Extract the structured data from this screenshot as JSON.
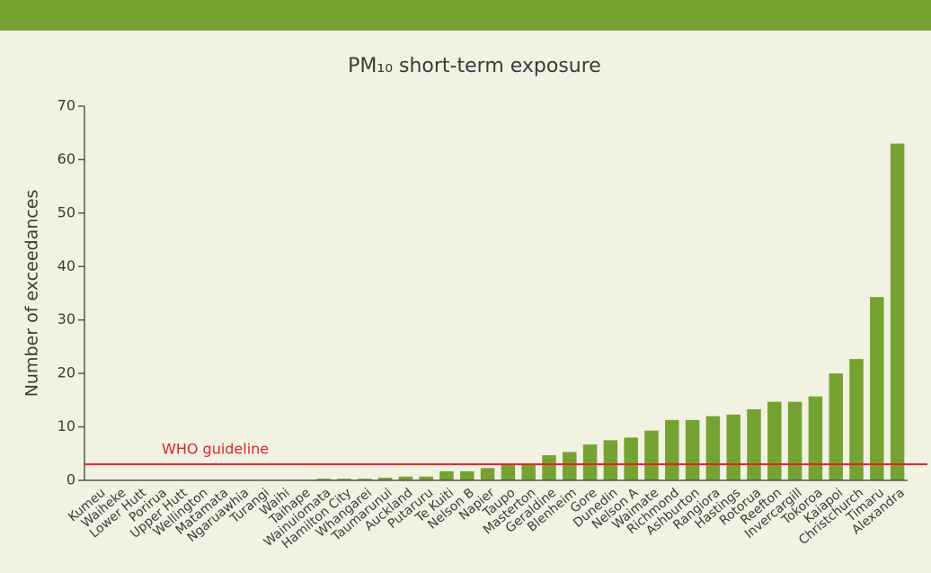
{
  "chart_data": {
    "type": "bar",
    "title": "PM₁₀ short-term exposure",
    "ylabel": "Number of exceedances",
    "categories": [
      "Kumeu",
      "Waiheke",
      "Lower Hutt",
      "Porirua",
      "Upper Hutt",
      "Wellington",
      "Matamata",
      "Ngaruawhia",
      "Turangi",
      "Waihi",
      "Taihape",
      "Wainuiomata",
      "Hamilton City",
      "Whangarei",
      "Taumarunui",
      "Auckland",
      "Putaruru",
      "Te Kuiti",
      "Nelson B",
      "Napier",
      "Taupo",
      "Masterton",
      "Geraldine",
      "Blenheim",
      "Gore",
      "Dunedin",
      "Nelson A",
      "Waimate",
      "Richmond",
      "Ashburton",
      "Rangiora",
      "Hastings",
      "Rotorua",
      "Reefton",
      "Invercargill",
      "Tokoroa",
      "Kaiapoi",
      "Christchurch",
      "Timaru",
      "Alexandra"
    ],
    "values": [
      0,
      0,
      0,
      0,
      0,
      0,
      0,
      0,
      0,
      0,
      0,
      0.3,
      0.3,
      0.3,
      0.5,
      0.7,
      0.7,
      1.7,
      1.7,
      2.3,
      3,
      3,
      4.7,
      5.3,
      6.7,
      7.5,
      8,
      9.3,
      11.3,
      11.3,
      12,
      12.3,
      13.3,
      14.7,
      14.7,
      15.7,
      20,
      22.7,
      34.3,
      63
    ],
    "color": "#76a232",
    "ylim": [
      0,
      70
    ],
    "yticks": [
      0,
      10,
      20,
      30,
      40,
      50,
      60,
      70
    ],
    "reference_lines": [
      {
        "value": 3,
        "label": "WHO guideline",
        "color": "#e2202c"
      }
    ]
  }
}
